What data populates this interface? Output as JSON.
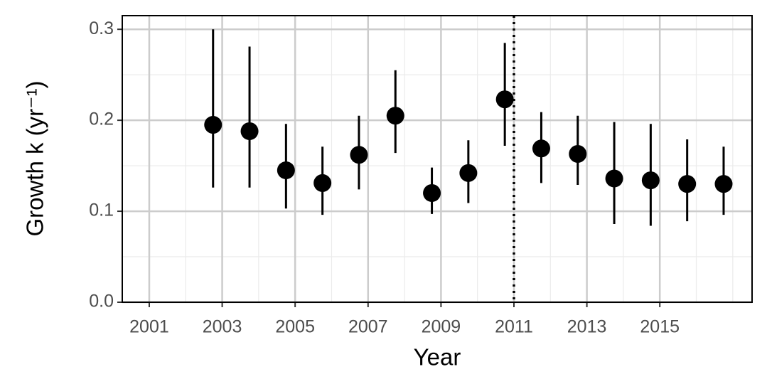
{
  "chart_data": {
    "type": "errorbar-scatter",
    "x_label": "Year",
    "y_label": "Growth k (yr⁻¹)",
    "x": [
      2002.75,
      2003.75,
      2004.75,
      2005.75,
      2006.75,
      2007.75,
      2008.75,
      2009.75,
      2010.75,
      2011.75,
      2012.75,
      2013.75,
      2014.75,
      2015.75,
      2016.75
    ],
    "values": [
      0.195,
      0.188,
      0.145,
      0.131,
      0.162,
      0.205,
      0.12,
      0.142,
      0.223,
      0.169,
      0.163,
      0.136,
      0.134,
      0.13,
      0.13
    ],
    "lower": [
      0.126,
      0.126,
      0.103,
      0.096,
      0.124,
      0.164,
      0.097,
      0.109,
      0.172,
      0.131,
      0.129,
      0.086,
      0.084,
      0.089,
      0.096
    ],
    "upper": [
      0.3,
      0.281,
      0.196,
      0.171,
      0.205,
      0.255,
      0.148,
      0.178,
      0.285,
      0.209,
      0.205,
      0.198,
      0.196,
      0.179,
      0.171
    ],
    "color": "#000000",
    "vline": 2011,
    "xlim": [
      2000.26,
      2017.53
    ],
    "xticks": [
      2001,
      2003,
      2005,
      2007,
      2009,
      2011,
      2013,
      2015
    ],
    "ylim": [
      0,
      0.315
    ],
    "yticks": [
      {
        "value": 0,
        "label": "0.0"
      },
      0.1,
      0.2,
      0.3
    ],
    "grid": true
  }
}
